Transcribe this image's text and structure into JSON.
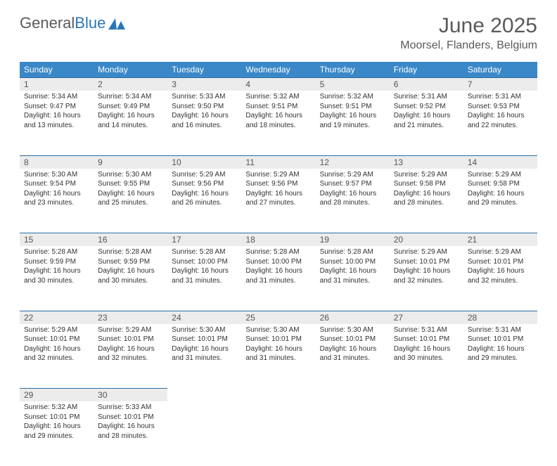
{
  "logo": {
    "text1": "General",
    "text2": "Blue"
  },
  "title": "June 2025",
  "location": "Moorsel, Flanders, Belgium",
  "colors": {
    "header_bg": "#3a88c8",
    "header_text": "#ffffff",
    "daynum_bg": "#ececec",
    "border": "#2a6ca8",
    "body_text": "#333333",
    "title_text": "#5a5a5a"
  },
  "dayHeaders": [
    "Sunday",
    "Monday",
    "Tuesday",
    "Wednesday",
    "Thursday",
    "Friday",
    "Saturday"
  ],
  "weeks": [
    [
      {
        "n": "1",
        "sr": "5:34 AM",
        "ss": "9:47 PM",
        "dl": "16 hours and 13 minutes."
      },
      {
        "n": "2",
        "sr": "5:34 AM",
        "ss": "9:49 PM",
        "dl": "16 hours and 14 minutes."
      },
      {
        "n": "3",
        "sr": "5:33 AM",
        "ss": "9:50 PM",
        "dl": "16 hours and 16 minutes."
      },
      {
        "n": "4",
        "sr": "5:32 AM",
        "ss": "9:51 PM",
        "dl": "16 hours and 18 minutes."
      },
      {
        "n": "5",
        "sr": "5:32 AM",
        "ss": "9:51 PM",
        "dl": "16 hours and 19 minutes."
      },
      {
        "n": "6",
        "sr": "5:31 AM",
        "ss": "9:52 PM",
        "dl": "16 hours and 21 minutes."
      },
      {
        "n": "7",
        "sr": "5:31 AM",
        "ss": "9:53 PM",
        "dl": "16 hours and 22 minutes."
      }
    ],
    [
      {
        "n": "8",
        "sr": "5:30 AM",
        "ss": "9:54 PM",
        "dl": "16 hours and 23 minutes."
      },
      {
        "n": "9",
        "sr": "5:30 AM",
        "ss": "9:55 PM",
        "dl": "16 hours and 25 minutes."
      },
      {
        "n": "10",
        "sr": "5:29 AM",
        "ss": "9:56 PM",
        "dl": "16 hours and 26 minutes."
      },
      {
        "n": "11",
        "sr": "5:29 AM",
        "ss": "9:56 PM",
        "dl": "16 hours and 27 minutes."
      },
      {
        "n": "12",
        "sr": "5:29 AM",
        "ss": "9:57 PM",
        "dl": "16 hours and 28 minutes."
      },
      {
        "n": "13",
        "sr": "5:29 AM",
        "ss": "9:58 PM",
        "dl": "16 hours and 28 minutes."
      },
      {
        "n": "14",
        "sr": "5:29 AM",
        "ss": "9:58 PM",
        "dl": "16 hours and 29 minutes."
      }
    ],
    [
      {
        "n": "15",
        "sr": "5:28 AM",
        "ss": "9:59 PM",
        "dl": "16 hours and 30 minutes."
      },
      {
        "n": "16",
        "sr": "5:28 AM",
        "ss": "9:59 PM",
        "dl": "16 hours and 30 minutes."
      },
      {
        "n": "17",
        "sr": "5:28 AM",
        "ss": "10:00 PM",
        "dl": "16 hours and 31 minutes."
      },
      {
        "n": "18",
        "sr": "5:28 AM",
        "ss": "10:00 PM",
        "dl": "16 hours and 31 minutes."
      },
      {
        "n": "19",
        "sr": "5:28 AM",
        "ss": "10:00 PM",
        "dl": "16 hours and 31 minutes."
      },
      {
        "n": "20",
        "sr": "5:29 AM",
        "ss": "10:01 PM",
        "dl": "16 hours and 32 minutes."
      },
      {
        "n": "21",
        "sr": "5:29 AM",
        "ss": "10:01 PM",
        "dl": "16 hours and 32 minutes."
      }
    ],
    [
      {
        "n": "22",
        "sr": "5:29 AM",
        "ss": "10:01 PM",
        "dl": "16 hours and 32 minutes."
      },
      {
        "n": "23",
        "sr": "5:29 AM",
        "ss": "10:01 PM",
        "dl": "16 hours and 32 minutes."
      },
      {
        "n": "24",
        "sr": "5:30 AM",
        "ss": "10:01 PM",
        "dl": "16 hours and 31 minutes."
      },
      {
        "n": "25",
        "sr": "5:30 AM",
        "ss": "10:01 PM",
        "dl": "16 hours and 31 minutes."
      },
      {
        "n": "26",
        "sr": "5:30 AM",
        "ss": "10:01 PM",
        "dl": "16 hours and 31 minutes."
      },
      {
        "n": "27",
        "sr": "5:31 AM",
        "ss": "10:01 PM",
        "dl": "16 hours and 30 minutes."
      },
      {
        "n": "28",
        "sr": "5:31 AM",
        "ss": "10:01 PM",
        "dl": "16 hours and 29 minutes."
      }
    ],
    [
      {
        "n": "29",
        "sr": "5:32 AM",
        "ss": "10:01 PM",
        "dl": "16 hours and 29 minutes."
      },
      {
        "n": "30",
        "sr": "5:33 AM",
        "ss": "10:01 PM",
        "dl": "16 hours and 28 minutes."
      },
      null,
      null,
      null,
      null,
      null
    ]
  ]
}
